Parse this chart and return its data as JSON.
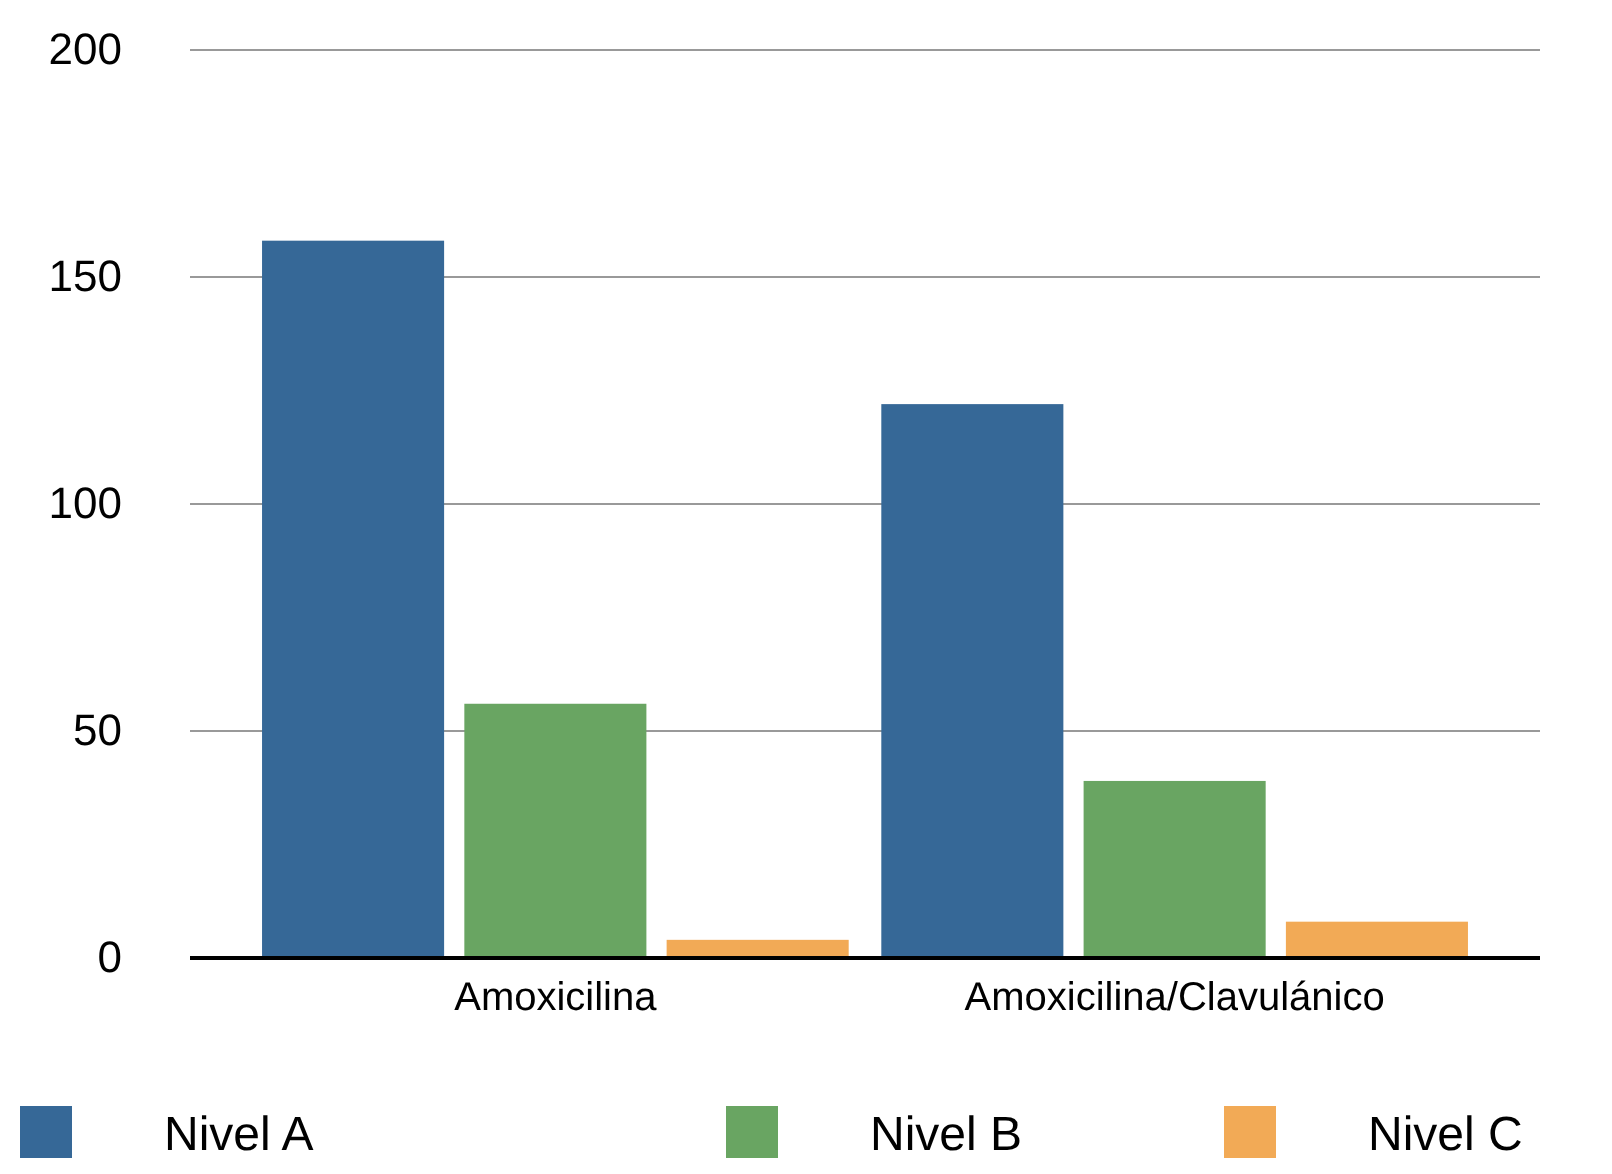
{
  "chart_data": {
    "type": "bar",
    "categories": [
      "Amoxicilina",
      "Amoxicilina/Clavulánico"
    ],
    "series": [
      {
        "name": "Nivel A",
        "color": "#366897",
        "values": [
          158,
          122
        ]
      },
      {
        "name": "Nivel B",
        "color": "#69a562",
        "values": [
          56,
          39
        ]
      },
      {
        "name": "Nivel C",
        "color": "#f2aa56",
        "values": [
          4,
          8
        ]
      }
    ],
    "ylim": [
      0,
      200
    ],
    "yticks": [
      0,
      50,
      100,
      150,
      200
    ],
    "grid": "y",
    "legend": "bottom"
  }
}
